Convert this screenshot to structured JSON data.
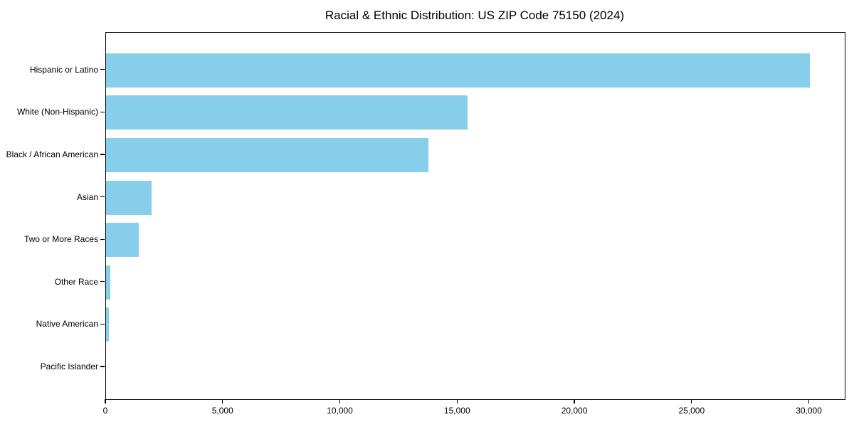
{
  "chart_data": {
    "type": "bar",
    "orientation": "horizontal",
    "title": "Racial & Ethnic Distribution: US ZIP Code 75150 (2024)",
    "categories": [
      "Hispanic or Latino",
      "White (Non-Hispanic)",
      "Black / African American",
      "Asian",
      "Two or More Races",
      "Other Race",
      "Native American",
      "Pacific Islander"
    ],
    "values": [
      30000,
      15430,
      13760,
      1930,
      1400,
      190,
      110,
      0
    ],
    "xlabel": "",
    "ylabel": "",
    "xlim": [
      0,
      31500
    ],
    "x_ticks": [
      0,
      5000,
      10000,
      15000,
      20000,
      25000,
      30000
    ],
    "x_tick_labels": [
      "0",
      "5,000",
      "10,000",
      "15,000",
      "20,000",
      "25,000",
      "30,000"
    ],
    "bar_color": "#87CEEB",
    "frame_color": "#000000",
    "background_color": "#ffffff",
    "grid": false,
    "legend": false
  }
}
